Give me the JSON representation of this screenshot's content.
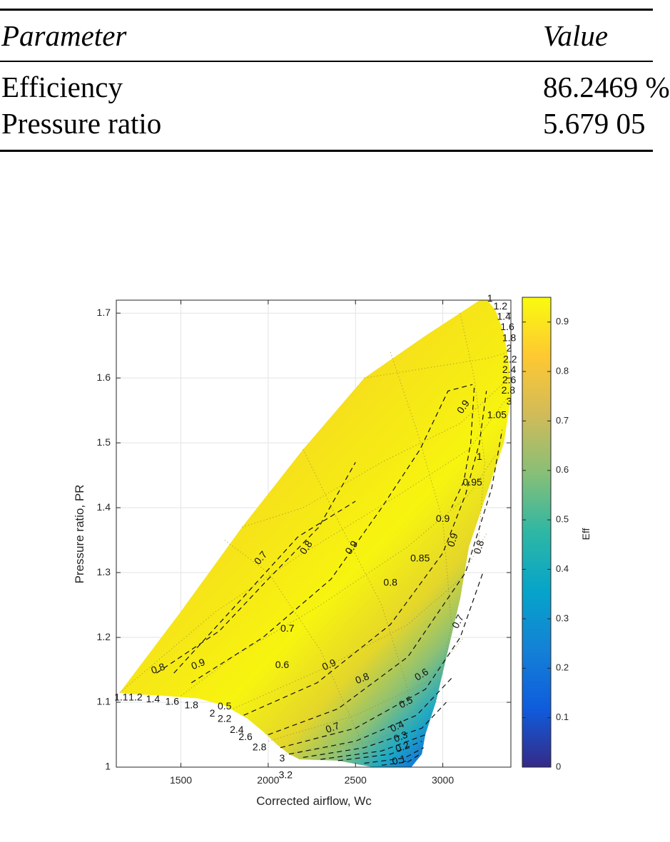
{
  "table": {
    "headers": [
      "Parameter",
      "Value"
    ],
    "rows": [
      {
        "param": "Efficiency",
        "value": "86.2469 %"
      },
      {
        "param": "Pressure ratio",
        "value": "5.679 05"
      }
    ]
  },
  "chart_data": {
    "type": "heatmap",
    "title": "",
    "xlabel": "Corrected airflow, Wc",
    "ylabel": "Pressure ratio, PR",
    "xlim": [
      1130,
      3390
    ],
    "ylim": [
      1.0,
      1.72
    ],
    "xticks": [
      1500,
      2000,
      2500,
      3000
    ],
    "xtick_labels": [
      "1500",
      "2000",
      "2500",
      "3000"
    ],
    "yticks": [
      1.0,
      1.1,
      1.2,
      1.3,
      1.4,
      1.5,
      1.6,
      1.7
    ],
    "ytick_labels": [
      "1",
      "1.1",
      "1.2",
      "1.3",
      "1.4",
      "1.5",
      "1.6",
      "1.7"
    ],
    "grid": true,
    "colorbar": {
      "label": "Eff",
      "range": [
        0,
        0.95
      ],
      "ticks": [
        0,
        0.1,
        0.2,
        0.3,
        0.4,
        0.5,
        0.6,
        0.7,
        0.8,
        0.9
      ],
      "tick_labels": [
        "0",
        "0.1",
        "0.2",
        "0.3",
        "0.4",
        "0.5",
        "0.6",
        "0.7",
        "0.8",
        "0.9"
      ],
      "colormap": [
        "#352a87",
        "#0f5cdd",
        "#1481d6",
        "#06a4ca",
        "#2eb7a4",
        "#87bf77",
        "#d1bb59",
        "#fec832",
        "#f9fb0e"
      ]
    },
    "map_boundary": [
      [
        1150,
        1.115
      ],
      [
        1500,
        1.24
      ],
      [
        1850,
        1.37
      ],
      [
        2200,
        1.49
      ],
      [
        2550,
        1.6
      ],
      [
        2900,
        1.665
      ],
      [
        3240,
        1.725
      ],
      [
        3300,
        1.705
      ],
      [
        3350,
        1.67
      ],
      [
        3380,
        1.62
      ],
      [
        3390,
        1.57
      ],
      [
        3350,
        1.5
      ],
      [
        3250,
        1.42
      ],
      [
        3150,
        1.34
      ],
      [
        3100,
        1.26
      ],
      [
        3030,
        1.18
      ],
      [
        2960,
        1.1
      ],
      [
        2900,
        1.05
      ],
      [
        2880,
        1.02
      ],
      [
        2820,
        1.0
      ],
      [
        2600,
        1.0
      ],
      [
        2400,
        1.01
      ],
      [
        2180,
        1.012
      ],
      [
        2120,
        1.02
      ],
      [
        2050,
        1.035
      ],
      [
        1970,
        1.055
      ],
      [
        1880,
        1.075
      ],
      [
        1750,
        1.095
      ],
      [
        1600,
        1.106
      ],
      [
        1400,
        1.11
      ],
      [
        1200,
        1.113
      ]
    ],
    "efficiency_contours": [
      {
        "level": 0.7,
        "points": [
          [
            1460,
            1.145
          ],
          [
            1850,
            1.26
          ],
          [
            2170,
            1.355
          ],
          [
            2500,
            1.41
          ]
        ]
      },
      {
        "level": 0.8,
        "points": [
          [
            1360,
            1.145
          ],
          [
            1720,
            1.21
          ],
          [
            2000,
            1.29
          ],
          [
            2290,
            1.37
          ],
          [
            2500,
            1.47
          ]
        ]
      },
      {
        "level": 0.9,
        "points": [
          [
            1560,
            1.13
          ],
          [
            1970,
            1.2
          ],
          [
            2360,
            1.29
          ],
          [
            2650,
            1.4
          ],
          [
            2870,
            1.49
          ],
          [
            3030,
            1.58
          ],
          [
            3170,
            1.59
          ]
        ]
      },
      {
        "level": 0.95,
        "points": [
          [
            3180,
            1.585
          ],
          [
            3160,
            1.5
          ],
          [
            3120,
            1.44
          ],
          [
            3050,
            1.4
          ]
        ]
      },
      {
        "level": 0.9,
        "points": [
          [
            1860,
            1.08
          ],
          [
            2280,
            1.13
          ],
          [
            2700,
            1.22
          ],
          [
            3000,
            1.33
          ],
          [
            3130,
            1.42
          ],
          [
            3210,
            1.5
          ],
          [
            3250,
            1.58
          ]
        ]
      },
      {
        "level": 0.8,
        "points": [
          [
            2000,
            1.05
          ],
          [
            2400,
            1.09
          ],
          [
            2800,
            1.17
          ],
          [
            3130,
            1.3
          ],
          [
            3280,
            1.43
          ],
          [
            3340,
            1.52
          ]
        ]
      },
      {
        "level": 0.7,
        "points": [
          [
            2070,
            1.03
          ],
          [
            2500,
            1.06
          ],
          [
            2900,
            1.12
          ],
          [
            3100,
            1.2
          ],
          [
            3230,
            1.3
          ]
        ]
      },
      {
        "level": 0.6,
        "points": [
          [
            2120,
            1.02
          ],
          [
            2500,
            1.04
          ],
          [
            2850,
            1.08
          ],
          [
            3060,
            1.14
          ]
        ]
      },
      {
        "level": 0.5,
        "points": [
          [
            2200,
            1.015
          ],
          [
            2550,
            1.03
          ],
          [
            2880,
            1.06
          ],
          [
            3020,
            1.1
          ]
        ]
      },
      {
        "level": 0.4,
        "points": [
          [
            2300,
            1.012
          ],
          [
            2650,
            1.025
          ],
          [
            2900,
            1.05
          ]
        ]
      },
      {
        "level": 0.3,
        "points": [
          [
            2400,
            1.01
          ],
          [
            2700,
            1.02
          ],
          [
            2880,
            1.04
          ]
        ]
      },
      {
        "level": 0.2,
        "points": [
          [
            2550,
            1.006
          ],
          [
            2780,
            1.014
          ],
          [
            2890,
            1.03
          ]
        ]
      },
      {
        "level": 0.1,
        "points": [
          [
            2650,
            1.003
          ],
          [
            2800,
            1.008
          ],
          [
            2870,
            1.02
          ]
        ]
      }
    ],
    "speed_lines": [
      [
        [
          1150,
          1.115
        ],
        [
          1700,
          1.24
        ],
        [
          2200,
          1.33
        ],
        [
          2750,
          1.42
        ],
        [
          3150,
          1.49
        ],
        [
          3370,
          1.57
        ]
      ],
      [
        [
          1850,
          1.37
        ],
        [
          2200,
          1.4
        ],
        [
          2650,
          1.47
        ],
        [
          3100,
          1.53
        ],
        [
          3380,
          1.6
        ]
      ],
      [
        [
          2550,
          1.6
        ],
        [
          2900,
          1.615
        ],
        [
          3250,
          1.63
        ],
        [
          3380,
          1.64
        ]
      ],
      [
        [
          1500,
          1.11
        ],
        [
          1800,
          1.17
        ],
        [
          2300,
          1.25
        ],
        [
          2800,
          1.34
        ],
        [
          3150,
          1.42
        ],
        [
          3300,
          1.48
        ]
      ],
      [
        [
          1800,
          1.09
        ],
        [
          2300,
          1.15
        ],
        [
          2800,
          1.22
        ],
        [
          3100,
          1.29
        ],
        [
          3250,
          1.36
        ]
      ],
      [
        [
          2000,
          1.04
        ],
        [
          2500,
          1.08
        ],
        [
          2900,
          1.13
        ],
        [
          3120,
          1.2
        ]
      ],
      [
        [
          2100,
          1.02
        ],
        [
          2600,
          1.04
        ],
        [
          2950,
          1.08
        ]
      ],
      [
        [
          1750,
          1.35
        ],
        [
          2000,
          1.3
        ],
        [
          2300,
          1.18
        ],
        [
          2500,
          1.06
        ],
        [
          2600,
          1.0
        ]
      ],
      [
        [
          2200,
          1.49
        ],
        [
          2400,
          1.38
        ],
        [
          2650,
          1.25
        ],
        [
          2800,
          1.12
        ],
        [
          2850,
          1.02
        ]
      ],
      [
        [
          2700,
          1.64
        ],
        [
          2850,
          1.52
        ],
        [
          3000,
          1.38
        ],
        [
          3050,
          1.22
        ],
        [
          2960,
          1.1
        ]
      ],
      [
        [
          3100,
          1.7
        ],
        [
          3180,
          1.6
        ],
        [
          3240,
          1.47
        ],
        [
          3200,
          1.33
        ]
      ]
    ],
    "contour_labels": [
      {
        "text": "0.8",
        "x": 1370,
        "y": 1.151,
        "angle": -20
      },
      {
        "text": "0.9",
        "x": 1600,
        "y": 1.158,
        "angle": -22
      },
      {
        "text": "0.6",
        "x": 2080,
        "y": 1.157,
        "angle": 0
      },
      {
        "text": "0.9",
        "x": 2350,
        "y": 1.157,
        "angle": -24
      },
      {
        "text": "0.8",
        "x": 2540,
        "y": 1.136,
        "angle": -22
      },
      {
        "text": "0.6",
        "x": 2880,
        "y": 1.142,
        "angle": -32
      },
      {
        "text": "0.5",
        "x": 2790,
        "y": 1.099,
        "angle": -28
      },
      {
        "text": "0.4",
        "x": 2740,
        "y": 1.062,
        "angle": -24
      },
      {
        "text": "0.3",
        "x": 2760,
        "y": 1.046,
        "angle": -22
      },
      {
        "text": "0.2",
        "x": 2770,
        "y": 1.03,
        "angle": -20
      },
      {
        "text": "0.1",
        "x": 2750,
        "y": 1.01,
        "angle": -15
      },
      {
        "text": "0.7",
        "x": 2370,
        "y": 1.06,
        "angle": -20
      },
      {
        "text": "0.7",
        "x": 2110,
        "y": 1.213,
        "angle": 0
      },
      {
        "text": "0.7",
        "x": 1960,
        "y": 1.322,
        "angle": -50
      },
      {
        "text": "0.8",
        "x": 2220,
        "y": 1.338,
        "angle": -55
      },
      {
        "text": "0.9",
        "x": 2480,
        "y": 1.338,
        "angle": -55
      },
      {
        "text": "0.8",
        "x": 2700,
        "y": 1.284,
        "angle": 0
      },
      {
        "text": "0.85",
        "x": 2870,
        "y": 1.321,
        "angle": 0
      },
      {
        "text": "0.9",
        "x": 3000,
        "y": 1.382,
        "angle": 0
      },
      {
        "text": "0.9",
        "x": 3060,
        "y": 1.35,
        "angle": -72
      },
      {
        "text": "0.8",
        "x": 3210,
        "y": 1.339,
        "angle": -72
      },
      {
        "text": "0.7",
        "x": 3090,
        "y": 1.224,
        "angle": -62
      },
      {
        "text": "0.95",
        "x": 3170,
        "y": 1.438,
        "angle": 0
      },
      {
        "text": "1",
        "x": 3210,
        "y": 1.478,
        "angle": 0
      },
      {
        "text": "0.9",
        "x": 3120,
        "y": 1.555,
        "angle": -55
      },
      {
        "text": "1.05",
        "x": 3310,
        "y": 1.542,
        "angle": 0
      },
      {
        "text": "1",
        "x": 3270,
        "y": 1.722,
        "angle": 0
      },
      {
        "text": "1.2",
        "x": 3330,
        "y": 1.71,
        "angle": 0
      },
      {
        "text": "1.4",
        "x": 3350,
        "y": 1.694,
        "angle": 0
      },
      {
        "text": "1.6",
        "x": 3370,
        "y": 1.678,
        "angle": 0
      },
      {
        "text": "1.8",
        "x": 3380,
        "y": 1.661,
        "angle": 0
      },
      {
        "text": "2",
        "x": 3380,
        "y": 1.645,
        "angle": 0
      },
      {
        "text": "2.2",
        "x": 3385,
        "y": 1.628,
        "angle": 0
      },
      {
        "text": "2.4",
        "x": 3380,
        "y": 1.612,
        "angle": 0
      },
      {
        "text": "2.6",
        "x": 3380,
        "y": 1.596,
        "angle": 0
      },
      {
        "text": "2.8",
        "x": 3375,
        "y": 1.58,
        "angle": 0
      },
      {
        "text": "3",
        "x": 3380,
        "y": 1.563,
        "angle": 0
      },
      {
        "text": "1.1",
        "x": 1158,
        "y": 1.107,
        "angle": 0
      },
      {
        "text": "1.2",
        "x": 1240,
        "y": 1.107,
        "angle": 0
      },
      {
        "text": "1.4",
        "x": 1340,
        "y": 1.104,
        "angle": 0
      },
      {
        "text": "1.6",
        "x": 1450,
        "y": 1.1,
        "angle": 0
      },
      {
        "text": "1.8",
        "x": 1560,
        "y": 1.095,
        "angle": 0
      },
      {
        "text": "2",
        "x": 1680,
        "y": 1.082,
        "angle": 0
      },
      {
        "text": "2.2",
        "x": 1750,
        "y": 1.074,
        "angle": 0
      },
      {
        "text": "2.4",
        "x": 1820,
        "y": 1.057,
        "angle": 0
      },
      {
        "text": "2.6",
        "x": 1870,
        "y": 1.046,
        "angle": 0
      },
      {
        "text": "2.8",
        "x": 1950,
        "y": 1.03,
        "angle": 0
      },
      {
        "text": "3",
        "x": 2080,
        "y": 1.013,
        "angle": 0
      },
      {
        "text": "3.2",
        "x": 2100,
        "y": 0.987,
        "angle": 0
      },
      {
        "text": "0.5",
        "x": 1750,
        "y": 1.093,
        "angle": 0
      }
    ]
  }
}
